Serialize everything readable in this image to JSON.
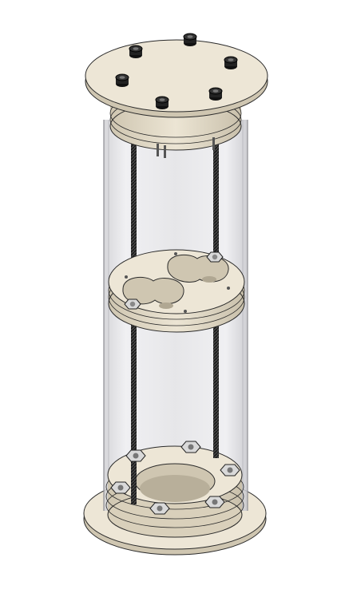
{
  "view": {
    "background": "#ffffff",
    "colors": {
      "plate": "#ede6d6",
      "plate_edge": "#d6cdb8",
      "plate_dark": "#bfb6a2",
      "outline": "#2a2a2a",
      "tube_glass": "#e4e4e6",
      "tube_edge": "#9a9a9e",
      "rod": "#3a3a3a",
      "bolt": "#1e1e1e",
      "nut": "#d9d9d9"
    },
    "icons": {
      "top_cap": "top-end-cap-icon",
      "middle_plate": "baffle-plate-icon",
      "bottom_flange": "bottom-flange-icon",
      "tube": "clear-tube-icon",
      "rod": "threaded-rod-icon",
      "bolt": "socket-head-bolt-icon",
      "nut": "hex-nut-icon"
    }
  }
}
